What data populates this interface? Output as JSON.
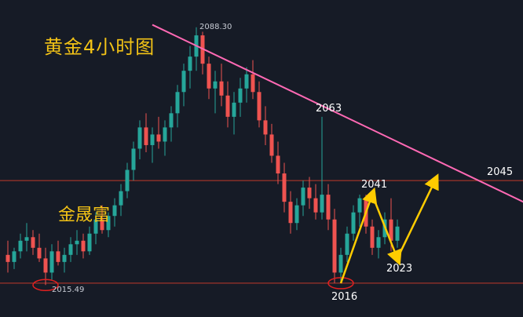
{
  "chart_data": {
    "type": "candlestick",
    "title": "黄金4小时图",
    "watermark": "金晟富",
    "y_range": [
      2010,
      2092
    ],
    "colors": {
      "bull": "#26a69a",
      "bear": "#ef5350",
      "trend": "#ff69b4",
      "path": "#ffcc00",
      "level": "#c0392b",
      "circle": "#e02020"
    },
    "candles": [
      [
        2024,
        2028,
        2019,
        2022
      ],
      [
        2022,
        2026,
        2020,
        2025
      ],
      [
        2025,
        2030,
        2023,
        2028
      ],
      [
        2028,
        2033,
        2025,
        2029
      ],
      [
        2029,
        2031,
        2024,
        2026
      ],
      [
        2026,
        2030,
        2022,
        2023
      ],
      [
        2023,
        2026,
        2015.49,
        2019
      ],
      [
        2019,
        2027,
        2017,
        2025
      ],
      [
        2025,
        2028,
        2021,
        2022
      ],
      [
        2022,
        2026,
        2019,
        2024
      ],
      [
        2024,
        2029,
        2022,
        2027
      ],
      [
        2027,
        2031,
        2024,
        2028
      ],
      [
        2028,
        2030,
        2023,
        2025
      ],
      [
        2025,
        2032,
        2024,
        2030
      ],
      [
        2030,
        2036,
        2027,
        2034
      ],
      [
        2034,
        2038,
        2030,
        2031
      ],
      [
        2031,
        2036,
        2029,
        2035
      ],
      [
        2035,
        2040,
        2032,
        2038
      ],
      [
        2038,
        2044,
        2035,
        2042
      ],
      [
        2042,
        2050,
        2040,
        2048
      ],
      [
        2048,
        2056,
        2045,
        2054
      ],
      [
        2054,
        2062,
        2051,
        2060
      ],
      [
        2060,
        2064,
        2053,
        2055
      ],
      [
        2055,
        2060,
        2050,
        2058
      ],
      [
        2058,
        2063,
        2054,
        2056
      ],
      [
        2056,
        2062,
        2052,
        2060
      ],
      [
        2060,
        2066,
        2056,
        2064
      ],
      [
        2064,
        2072,
        2060,
        2070
      ],
      [
        2070,
        2078,
        2066,
        2076
      ],
      [
        2076,
        2083,
        2071,
        2080
      ],
      [
        2080,
        2088.3,
        2076,
        2086
      ],
      [
        2086,
        2087,
        2075,
        2078
      ],
      [
        2078,
        2080,
        2068,
        2071
      ],
      [
        2071,
        2076,
        2064,
        2073
      ],
      [
        2073,
        2078,
        2066,
        2069
      ],
      [
        2069,
        2073,
        2060,
        2063
      ],
      [
        2063,
        2070,
        2058,
        2067
      ],
      [
        2067,
        2074,
        2063,
        2071
      ],
      [
        2071,
        2077,
        2067,
        2075
      ],
      [
        2075,
        2079,
        2068,
        2070
      ],
      [
        2070,
        2073,
        2060,
        2062
      ],
      [
        2062,
        2066,
        2055,
        2058
      ],
      [
        2058,
        2061,
        2050,
        2052
      ],
      [
        2052,
        2056,
        2044,
        2047
      ],
      [
        2047,
        2050,
        2036,
        2039
      ],
      [
        2039,
        2042,
        2030,
        2033
      ],
      [
        2033,
        2040,
        2031,
        2038
      ],
      [
        2038,
        2045,
        2035,
        2043
      ],
      [
        2043,
        2046,
        2037,
        2040
      ],
      [
        2040,
        2044,
        2034,
        2036
      ],
      [
        2036,
        2063,
        2034,
        2041
      ],
      [
        2041,
        2044,
        2031,
        2034
      ],
      [
        2034,
        2037,
        2016,
        2019
      ],
      [
        2019,
        2026,
        2016,
        2024
      ],
      [
        2024,
        2032,
        2022,
        2030
      ],
      [
        2030,
        2038,
        2028,
        2036
      ],
      [
        2036,
        2041,
        2032,
        2040
      ],
      [
        2040,
        2041,
        2030,
        2032
      ],
      [
        2032,
        2034,
        2024,
        2026
      ],
      [
        2026,
        2031,
        2023,
        2029
      ],
      [
        2029,
        2036,
        2027,
        2034
      ],
      [
        2034,
        2040,
        2025,
        2028
      ],
      [
        2028,
        2034,
        2026,
        2032
      ]
    ],
    "trendline": {
      "from": [
        23,
        2089
      ],
      "to": [
        95,
        2028
      ]
    },
    "levels": [
      2045,
      2016
    ],
    "price_labels": [
      {
        "text": "2088.30",
        "candle": 30,
        "price": 2088.3,
        "kind": "axis"
      },
      {
        "text": "2015.49",
        "candle": 6,
        "price": 2015.49,
        "kind": "axis"
      },
      {
        "text": "2063",
        "candle": 50,
        "price": 2063,
        "kind": "level"
      },
      {
        "text": "2045",
        "candle": 76,
        "price": 2045,
        "kind": "level"
      },
      {
        "text": "2041",
        "candle": 58,
        "price": 2041,
        "kind": "level"
      },
      {
        "text": "2023",
        "candle": 62,
        "price": 2023,
        "kind": "level"
      },
      {
        "text": "2016",
        "candle": 53,
        "price": 2016,
        "kind": "level"
      }
    ],
    "projection_path": [
      [
        53,
        2016
      ],
      [
        58,
        2041
      ],
      [
        62,
        2023
      ],
      [
        68,
        2045
      ]
    ],
    "highlight_circles": [
      {
        "candle": 6,
        "price": 2015.49
      },
      {
        "candle": 53,
        "price": 2016
      }
    ]
  }
}
